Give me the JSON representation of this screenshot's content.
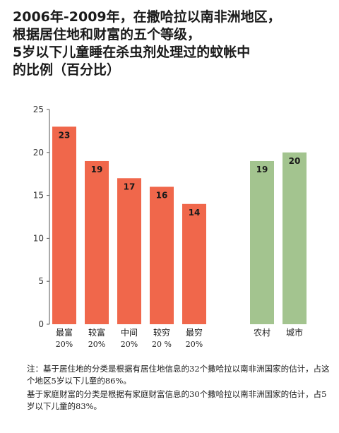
{
  "title_lines": [
    "2006年-2009年，在撒哈拉以南非洲地区，",
    "根据居住地和财富的五个等级，",
    "5岁以下儿童睡在杀虫剂处理过的蚊帐中",
    "的比例（百分比）"
  ],
  "notes": [
    "注：基于居住地的分类是根据有居住地信息的32个撒哈拉以南非洲国家的估计，占这个地区5岁以下儿童的86%。",
    "基于家庭财富的分类是根据有家庭财富信息的30个撒哈拉以南非洲国家的估计，占5岁以下儿童的83%。"
  ],
  "colors": {
    "wealth": "#f0674b",
    "residence": "#a3c48f",
    "axis": "#555555",
    "grid": "#dddddd"
  },
  "chart_data": {
    "type": "bar",
    "ylim": [
      0,
      25
    ],
    "yticks": [
      0,
      5,
      10,
      15,
      20,
      25
    ],
    "groups": [
      {
        "color_key": "wealth",
        "bars": [
          {
            "label": "最富",
            "sublabel": "20%",
            "value": 23
          },
          {
            "label": "较富",
            "sublabel": "20%",
            "value": 19
          },
          {
            "label": "中间",
            "sublabel": "20%",
            "value": 17
          },
          {
            "label": "较穷",
            "sublabel": "20 %",
            "value": 16
          },
          {
            "label": "最穷",
            "sublabel": "20%",
            "value": 14
          }
        ]
      },
      {
        "color_key": "residence",
        "bars": [
          {
            "label": "农村",
            "sublabel": "",
            "value": 19
          },
          {
            "label": "城市",
            "sublabel": "",
            "value": 20
          }
        ]
      }
    ]
  }
}
